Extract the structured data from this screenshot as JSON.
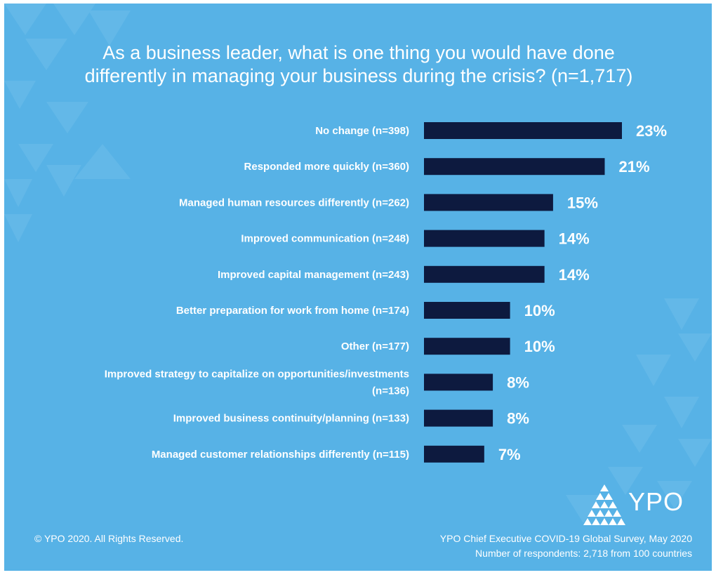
{
  "title_line1": "As a business leader, what is one thing you would have done",
  "title_line2": "differently in managing your business during the crisis? (n=1,717)",
  "chart_data": {
    "type": "bar",
    "orientation": "horizontal",
    "title": "As a business leader, what is one thing you would have done differently in managing your business during the crisis? (n=1,717)",
    "categories": [
      [
        "No change (n=398)"
      ],
      [
        "Responded more quickly (n=360)"
      ],
      [
        "Managed human resources differently (n=262)"
      ],
      [
        "Improved communication (n=248)"
      ],
      [
        "Improved capital management (n=243)"
      ],
      [
        "Better preparation for work from home (n=174)"
      ],
      [
        "Other (n=177)"
      ],
      [
        "Improved strategy to capitalize on opportunities/investments",
        "(n=136)"
      ],
      [
        "Improved business continuity/planning (n=133)"
      ],
      [
        "Managed customer relationships differently (n=115)"
      ]
    ],
    "values": [
      23,
      21,
      15,
      14,
      14,
      10,
      10,
      8,
      8,
      7
    ],
    "value_labels": [
      "23%",
      "21%",
      "15%",
      "14%",
      "14%",
      "10%",
      "10%",
      "8%",
      "8%",
      "7%"
    ],
    "unit": "%",
    "xlim": [
      0,
      23
    ],
    "grid": false,
    "legend": "none",
    "bar_color": "#0d1a3f",
    "background_color": "#57b2e6"
  },
  "footer": {
    "copyright": "© YPO 2020. All Rights Reserved.",
    "source_line1": "YPO Chief Executive COVID-19 Global Survey, May 2020",
    "source_line2": "Number of respondents: 2,718 from 100 countries"
  },
  "logo": {
    "text": "YPO",
    "icon": "ypo-triangle-logo-icon"
  }
}
